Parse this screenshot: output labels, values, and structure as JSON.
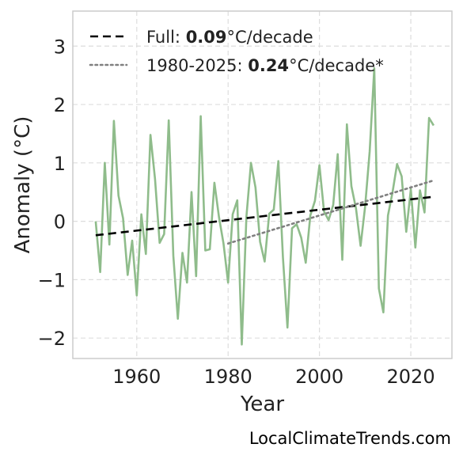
{
  "chart_data": {
    "type": "line",
    "xlabel": "Year",
    "ylabel": "Anomaly (°C)",
    "xlim": [
      1946,
      2029
    ],
    "ylim": [
      -2.35,
      3.6
    ],
    "xticks": [
      1960,
      1980,
      2000,
      2020
    ],
    "xtick_labels": [
      "1960",
      "1980",
      "2000",
      "2020"
    ],
    "yticks": [
      3,
      2,
      1,
      0,
      -1,
      -2
    ],
    "ytick_labels": [
      "3",
      "2",
      "1",
      "0",
      "−1",
      "−2"
    ],
    "grid": true,
    "legend_position": "top-left",
    "series": [
      {
        "style": "solid",
        "color": "#8fbc8b",
        "x": [
          1951,
          1952,
          1953,
          1954,
          1955,
          1956,
          1957,
          1958,
          1959,
          1960,
          1961,
          1962,
          1963,
          1964,
          1965,
          1966,
          1967,
          1968,
          1969,
          1970,
          1971,
          1972,
          1973,
          1974,
          1975,
          1976,
          1977,
          1978,
          1979,
          1980,
          1981,
          1982,
          1983,
          1984,
          1985,
          1986,
          1987,
          1988,
          1989,
          1990,
          1991,
          1992,
          1993,
          1994,
          1995,
          1996,
          1997,
          1998,
          1999,
          2000,
          2001,
          2002,
          2003,
          2004,
          2005,
          2006,
          2007,
          2008,
          2009,
          2010,
          2011,
          2012,
          2013,
          2014,
          2015,
          2016,
          2017,
          2018,
          2019,
          2020,
          2021,
          2022,
          2023,
          2024,
          2025
        ],
        "y": [
          0.0,
          -0.87,
          1.0,
          -0.4,
          1.72,
          0.44,
          0.05,
          -0.92,
          -0.33,
          -1.27,
          0.12,
          -0.56,
          1.48,
          0.72,
          -0.37,
          -0.22,
          1.73,
          -0.59,
          -1.67,
          -0.54,
          -1.05,
          0.5,
          -0.94,
          1.8,
          -0.5,
          -0.48,
          0.66,
          0.07,
          -0.38,
          -1.05,
          0.12,
          0.36,
          -2.11,
          0.07,
          1.0,
          0.58,
          -0.35,
          -0.69,
          0.13,
          0.2,
          1.03,
          -0.62,
          -1.82,
          -0.12,
          -0.05,
          -0.28,
          -0.71,
          0.1,
          0.35,
          0.96,
          0.17,
          0.02,
          0.28,
          1.15,
          -0.66,
          1.66,
          0.6,
          0.22,
          -0.42,
          0.25,
          1.2,
          2.62,
          -1.15,
          -1.56,
          0.1,
          0.5,
          0.98,
          0.77,
          -0.18,
          0.55,
          -0.45,
          0.53,
          0.15,
          1.77,
          1.64
        ]
      },
      {
        "name": "Full",
        "slope_label": "0.09",
        "unit_label": "°C/decade",
        "style": "dashed",
        "color": "#000000",
        "x": [
          1951,
          2025
        ],
        "y": [
          -0.24,
          0.42
        ]
      },
      {
        "name": "1980-2025",
        "slope_label": "0.24",
        "unit_label": "°C/decade*",
        "style": "dotted",
        "color": "#808080",
        "x": [
          1980,
          2025
        ],
        "y": [
          -0.38,
          0.7
        ]
      }
    ]
  },
  "watermark": "LocalClimateTrends.com"
}
